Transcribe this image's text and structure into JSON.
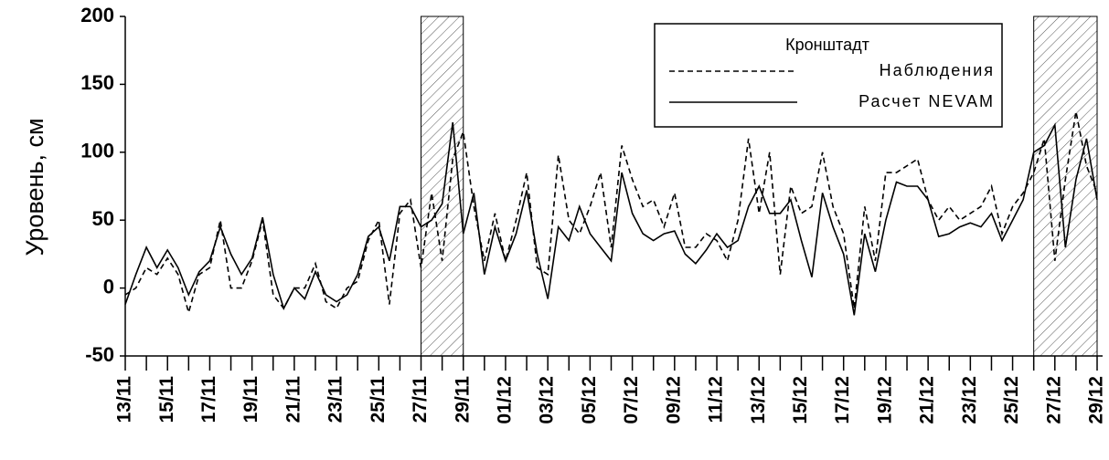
{
  "chart_data": {
    "type": "line",
    "ylabel": "Уровень, см",
    "legend_title": "Кронштадт",
    "legend": "upper right",
    "xlim": [
      0,
      46
    ],
    "ylim": [
      -50,
      200
    ],
    "yticks": [
      -50,
      0,
      50,
      100,
      150,
      200
    ],
    "xticks": [
      {
        "value": 0,
        "label": "13/11"
      },
      {
        "value": 2,
        "label": "15/11"
      },
      {
        "value": 4,
        "label": "17/11"
      },
      {
        "value": 6,
        "label": "19/11"
      },
      {
        "value": 8,
        "label": "21/11"
      },
      {
        "value": 10,
        "label": "23/11"
      },
      {
        "value": 12,
        "label": "25/11"
      },
      {
        "value": 14,
        "label": "27/11"
      },
      {
        "value": 16,
        "label": "29/11"
      },
      {
        "value": 18,
        "label": "01/12"
      },
      {
        "value": 20,
        "label": "03/12"
      },
      {
        "value": 22,
        "label": "05/12"
      },
      {
        "value": 24,
        "label": "07/12"
      },
      {
        "value": 26,
        "label": "09/12"
      },
      {
        "value": 28,
        "label": "11/12"
      },
      {
        "value": 30,
        "label": "13/12"
      },
      {
        "value": 32,
        "label": "15/12"
      },
      {
        "value": 34,
        "label": "17/12"
      },
      {
        "value": 36,
        "label": "19/12"
      },
      {
        "value": 38,
        "label": "21/12"
      },
      {
        "value": 40,
        "label": "23/12"
      },
      {
        "value": 42,
        "label": "25/12"
      },
      {
        "value": 44,
        "label": "27/12"
      },
      {
        "value": 46,
        "label": "29/12"
      }
    ],
    "xminorticks": [
      1,
      3,
      5,
      7,
      9,
      11,
      13,
      15,
      17,
      19,
      21,
      23,
      25,
      27,
      29,
      31,
      33,
      35,
      37,
      39,
      41,
      43,
      45
    ],
    "highlight_ranges": [
      [
        14,
        16
      ],
      [
        43,
        46
      ]
    ],
    "x": [
      0,
      0.5,
      1,
      1.5,
      2,
      2.5,
      3,
      3.5,
      4,
      4.5,
      5,
      5.5,
      6,
      6.5,
      7,
      7.5,
      8,
      8.5,
      9,
      9.5,
      10,
      10.5,
      11,
      11.5,
      12,
      12.5,
      13,
      13.5,
      14,
      14.5,
      15,
      15.5,
      16,
      16.5,
      17,
      17.5,
      18,
      18.5,
      19,
      19.5,
      20,
      20.5,
      21,
      21.5,
      22,
      22.5,
      23,
      23.5,
      24,
      24.5,
      25,
      25.5,
      26,
      26.5,
      27,
      27.5,
      28,
      28.5,
      29,
      29.5,
      30,
      30.5,
      31,
      31.5,
      32,
      32.5,
      33,
      33.5,
      34,
      34.5,
      35,
      35.5,
      36,
      36.5,
      37,
      37.5,
      38,
      38.5,
      39,
      39.5,
      40,
      40.5,
      41,
      41.5,
      42,
      42.5,
      43,
      43.5,
      44,
      44.5,
      45,
      45.5,
      46
    ],
    "series": [
      {
        "name": "Наблюдения",
        "color": "#000000",
        "dash": true,
        "values": [
          -5,
          0,
          15,
          10,
          22,
          10,
          -18,
          10,
          15,
          50,
          0,
          0,
          20,
          50,
          -5,
          -15,
          0,
          0,
          18,
          -10,
          -15,
          0,
          5,
          35,
          50,
          -12,
          55,
          65,
          15,
          70,
          20,
          95,
          115,
          60,
          20,
          55,
          20,
          50,
          85,
          15,
          10,
          98,
          50,
          40,
          60,
          85,
          30,
          105,
          80,
          60,
          65,
          45,
          70,
          30,
          30,
          40,
          35,
          20,
          50,
          110,
          55,
          100,
          10,
          75,
          55,
          60,
          100,
          60,
          40,
          -15,
          60,
          20,
          85,
          85,
          90,
          95,
          65,
          50,
          60,
          50,
          55,
          60,
          75,
          40,
          60,
          70,
          85,
          110,
          20,
          80,
          130,
          90,
          70
        ]
      },
      {
        "name": "Расчет NEVAM",
        "color": "#000000",
        "dash": false,
        "values": [
          -12,
          10,
          30,
          15,
          28,
          15,
          -5,
          12,
          20,
          45,
          25,
          10,
          22,
          52,
          10,
          -15,
          0,
          -8,
          12,
          -5,
          -10,
          -5,
          10,
          38,
          45,
          20,
          60,
          60,
          45,
          50,
          62,
          122,
          40,
          70,
          10,
          45,
          20,
          40,
          72,
          25,
          -8,
          45,
          35,
          60,
          40,
          30,
          20,
          85,
          55,
          40,
          35,
          40,
          42,
          25,
          18,
          28,
          40,
          30,
          35,
          60,
          75,
          55,
          55,
          65,
          35,
          8,
          70,
          45,
          25,
          -20,
          40,
          12,
          50,
          78,
          75,
          75,
          65,
          38,
          40,
          45,
          48,
          45,
          55,
          35,
          50,
          65,
          100,
          105,
          120,
          30,
          80,
          110,
          65
        ]
      }
    ]
  }
}
